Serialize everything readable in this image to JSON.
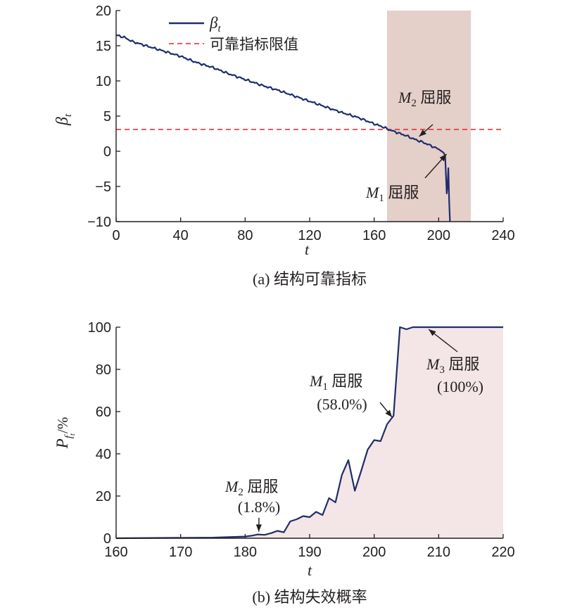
{
  "chart_data": [
    {
      "type": "line",
      "panel_caption": "(a) 结构可靠指标",
      "xlabel": "t",
      "ylabel": "β",
      "ylabel_sub": "t",
      "xlim": [
        0,
        240
      ],
      "ylim": [
        -10,
        20
      ],
      "xticks": [
        "0",
        "40",
        "80",
        "120",
        "160",
        "200",
        "240"
      ],
      "yticks": [
        "−10",
        "−5",
        "0",
        "5",
        "10",
        "15",
        "20"
      ],
      "legend_placement": "top-left",
      "legend": [
        {
          "label": "β",
          "label_sub": "t",
          "style": "solid",
          "color": "#1f2d6b"
        },
        {
          "label": "可靠指标限值",
          "style": "dashed",
          "color": "#e8232a"
        }
      ],
      "series": [
        {
          "name": "β",
          "x": [
            0,
            5,
            10,
            20,
            30,
            40,
            50,
            60,
            70,
            80,
            90,
            100,
            110,
            120,
            130,
            140,
            150,
            160,
            165,
            170,
            175,
            180,
            185,
            190,
            195,
            200,
            203,
            204,
            205,
            205.5,
            206,
            206.5,
            207
          ],
          "y": [
            16.5,
            16.2,
            15.6,
            14.9,
            14.2,
            13.5,
            12.6,
            11.9,
            11.0,
            10.2,
            9.4,
            8.7,
            7.9,
            7.1,
            6.3,
            5.5,
            4.8,
            3.9,
            3.5,
            3.0,
            2.6,
            2.2,
            1.7,
            1.3,
            0.8,
            0.3,
            -0.2,
            -0.6,
            -6.0,
            -5.0,
            -2.4,
            -7.0,
            -10.0
          ]
        }
      ],
      "reference_line": {
        "y": 3.1,
        "label": "可靠指标限值",
        "color": "#e8232a"
      },
      "shaded_region": {
        "x": [
          168,
          220
        ],
        "color": "#e4cfc9"
      },
      "annotations": [
        {
          "label": "M",
          "label_sub": "2",
          "suffix": " 屈服",
          "x": 187,
          "y": 1.8
        },
        {
          "label": "M",
          "label_sub": "1",
          "suffix": " 屈服",
          "x": 204,
          "y": -0.4
        }
      ]
    },
    {
      "type": "area",
      "panel_caption": "(b) 结构失效概率",
      "xlabel": "t",
      "ylabel": "P",
      "ylabel_sub": "f",
      "ylabel_subsub": "t",
      "ylabel_suffix": "/%",
      "xlim": [
        160,
        220
      ],
      "ylim": [
        0,
        100
      ],
      "xticks": [
        "160",
        "170",
        "180",
        "190",
        "200",
        "210",
        "220"
      ],
      "yticks": [
        "0",
        "20",
        "40",
        "60",
        "80",
        "100"
      ],
      "series": [
        {
          "name": "P",
          "x": [
            160,
            175,
            180,
            181,
            182,
            183,
            184,
            185,
            186,
            187,
            188,
            189,
            190,
            191,
            192,
            193,
            194,
            195,
            196,
            197,
            198,
            199,
            200,
            201,
            202,
            203,
            204,
            205,
            206,
            207,
            210,
            215,
            220
          ],
          "y": [
            0,
            0.3,
            0.8,
            1.2,
            1.8,
            1.6,
            2.4,
            3.5,
            2.8,
            8.0,
            9.0,
            10.5,
            10.0,
            12.5,
            11.0,
            19.0,
            17.0,
            30.0,
            37.0,
            22.5,
            32.0,
            42.0,
            46.5,
            46.0,
            54.0,
            58.0,
            100,
            99,
            100,
            100,
            100,
            100,
            100
          ]
        }
      ],
      "annotations": [
        {
          "label": "M",
          "label_sub": "2",
          "suffix": " 屈服",
          "value_text": "(1.8%)",
          "x": 182,
          "y": 1.8
        },
        {
          "label": "M",
          "label_sub": "1",
          "suffix": " 屈服",
          "value_text": "(58.0%)",
          "x": 203,
          "y": 58.0
        },
        {
          "label": "M",
          "label_sub": "3",
          "suffix": " 屈服",
          "value_text": "(100%)",
          "x": 208,
          "y": 100
        }
      ]
    }
  ],
  "colors": {
    "line": "#1f2d6b",
    "limit": "#e8232a",
    "shade_a": "#e4cfc9",
    "shade_b": "#f4e6e6",
    "axis": "#231f20"
  }
}
